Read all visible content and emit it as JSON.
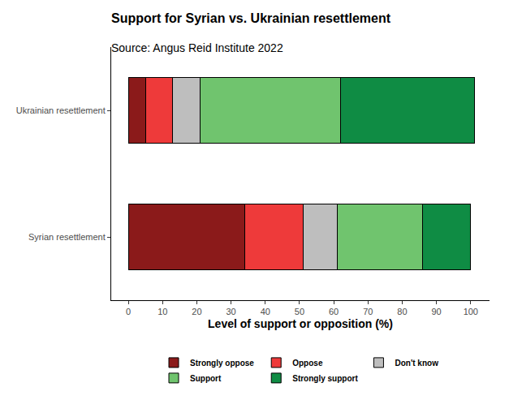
{
  "chart_data": {
    "type": "bar",
    "title": "Support for Syrian vs. Ukrainian resettlement",
    "subtitle": "Source: Angus Reid Institute 2022",
    "x_label": "Level of support or opposition (%)",
    "orientation": "horizontal",
    "stacked": true,
    "grid": false,
    "legend": "bottom",
    "categories": [
      "Ukrainian resettlement",
      "Syrian resettlement"
    ],
    "series": [
      {
        "name": "Strongly oppose",
        "color": "#8b1a1a",
        "values": [
          5,
          34
        ]
      },
      {
        "name": "Oppose",
        "color": "#ee3a3a",
        "values": [
          8,
          17
        ]
      },
      {
        "name": "Don't know",
        "color": "#bebebe",
        "values": [
          8,
          10
        ]
      },
      {
        "name": "Support",
        "color": "#70c46e",
        "values": [
          41,
          25
        ]
      },
      {
        "name": "Strongly support",
        "color": "#0f8c44",
        "values": [
          39,
          14
        ]
      }
    ],
    "xlim": [
      -5,
      105.5
    ],
    "xticks": [
      0,
      10,
      20,
      30,
      40,
      50,
      60,
      70,
      80,
      90,
      100
    ]
  }
}
